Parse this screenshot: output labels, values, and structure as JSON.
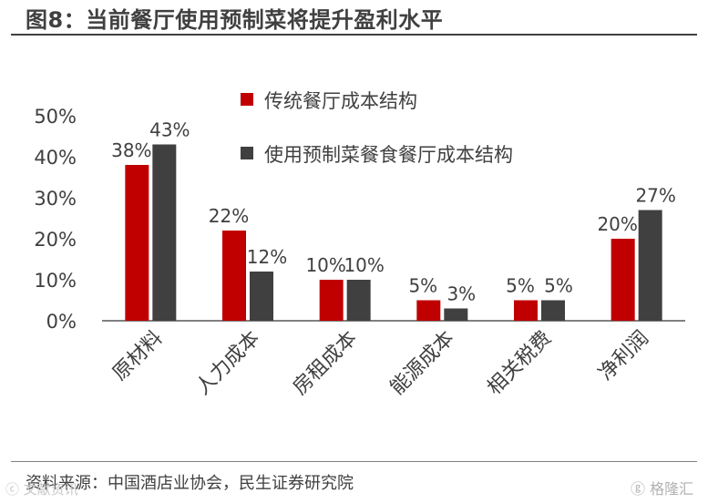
{
  "title": "图8：当前餐厅使用预制菜将提升盈利水平",
  "source": "资料来源：中国酒店业协会，民生证券研究院",
  "watermark_left": "ⓒ 文献资讯",
  "watermark_right": "ⓖ 格隆汇",
  "colors": {
    "series1": "#c00000",
    "series2": "#404040",
    "axis": "#808080",
    "text": "#404040"
  },
  "chart_data": {
    "type": "bar",
    "categories": [
      "原材料",
      "人力成本",
      "房租成本",
      "能源成本",
      "相关税费",
      "净利润"
    ],
    "series": [
      {
        "name": "传统餐厅成本结构",
        "values": [
          38,
          22,
          10,
          5,
          5,
          20
        ],
        "labels": [
          "38%",
          "22%",
          "10%",
          "5%",
          "5%",
          "20%"
        ]
      },
      {
        "name": "使用预制菜餐食餐厅成本结构",
        "values": [
          43,
          12,
          10,
          3,
          5,
          27
        ],
        "labels": [
          "43%",
          "12%",
          "10%",
          "3%",
          "5%",
          "27%"
        ]
      }
    ],
    "yticks": [
      "0%",
      "10%",
      "20%",
      "30%",
      "40%",
      "50%"
    ],
    "ylim": [
      0,
      50
    ],
    "legend_position": "top-right",
    "grid": false
  }
}
